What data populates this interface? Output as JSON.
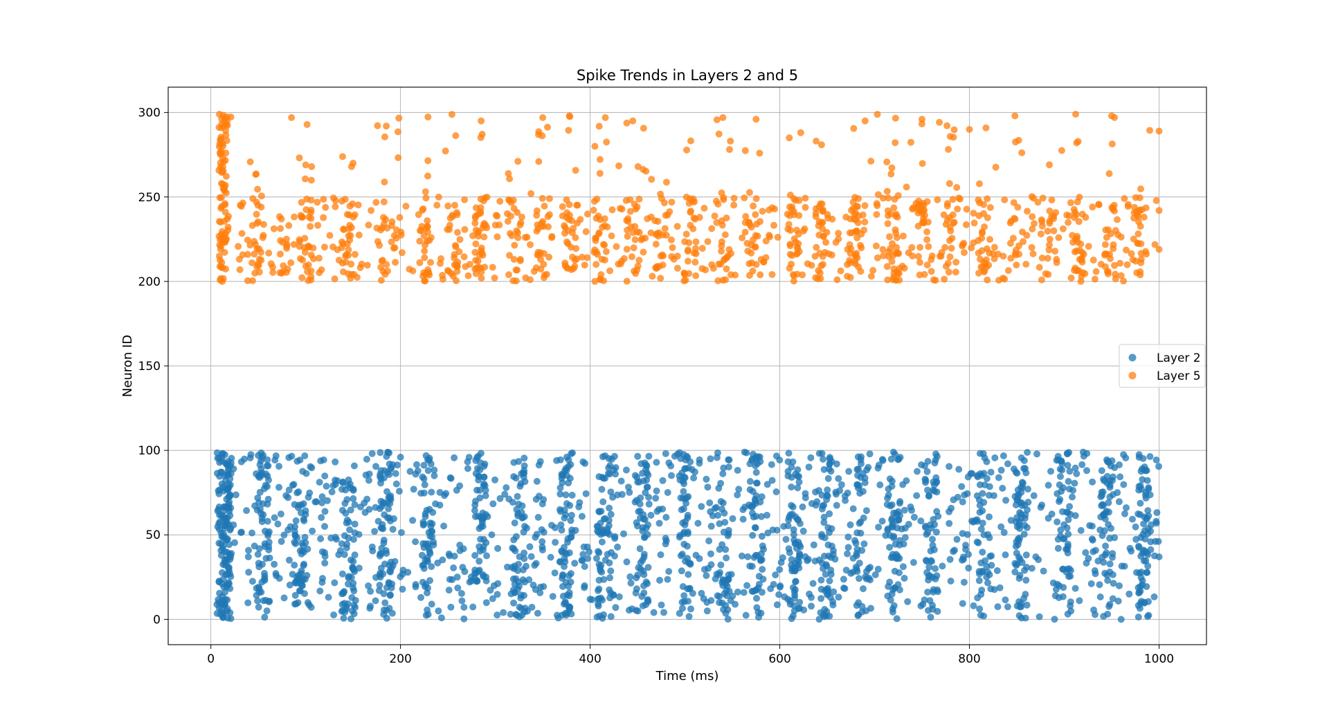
{
  "chart_data": {
    "type": "scatter",
    "title": "Spike Trends in Layers 2 and 5",
    "xlabel": "Time (ms)",
    "ylabel": "Neuron ID",
    "xlim": [
      -45,
      1050
    ],
    "ylim": [
      -15,
      315
    ],
    "xticks": [
      0,
      200,
      400,
      600,
      800,
      1000
    ],
    "yticks": [
      0,
      50,
      100,
      150,
      200,
      250,
      300
    ],
    "xtick_labels": [
      "0",
      "200",
      "400",
      "600",
      "800",
      "1000"
    ],
    "ytick_labels": [
      "0",
      "50",
      "100",
      "150",
      "200",
      "250",
      "300"
    ],
    "grid": true,
    "legend_position": "center-right",
    "marker_alpha": 0.75,
    "series": [
      {
        "name": "Layer 2",
        "color": "#1f77b4",
        "neuron_range": [
          0,
          99
        ],
        "time_range": [
          5,
          1000
        ],
        "approx_spike_count": 2200,
        "dense_burst_times": [
          8,
          10,
          12,
          14,
          16,
          18,
          20
        ],
        "column_times": [
          55,
          95,
          145,
          185,
          230,
          285,
          325,
          375,
          415,
          455,
          500,
          540,
          575,
          615,
          650,
          685,
          720,
          760,
          815,
          855,
          900,
          945,
          985
        ],
        "sample_points": [
          {
            "x": 8,
            "y": 65
          },
          {
            "x": 10,
            "y": 3
          },
          {
            "x": 12,
            "y": 98
          },
          {
            "x": 15,
            "y": 40
          },
          {
            "x": 20,
            "y": 27
          },
          {
            "x": 50,
            "y": 97
          },
          {
            "x": 120,
            "y": 55
          },
          {
            "x": 200,
            "y": 96
          },
          {
            "x": 240,
            "y": 5
          },
          {
            "x": 290,
            "y": 62
          },
          {
            "x": 320,
            "y": 30
          },
          {
            "x": 380,
            "y": 98
          },
          {
            "x": 410,
            "y": 2
          },
          {
            "x": 470,
            "y": 76
          },
          {
            "x": 540,
            "y": 20
          },
          {
            "x": 615,
            "y": 47
          },
          {
            "x": 660,
            "y": 92
          },
          {
            "x": 720,
            "y": 99
          },
          {
            "x": 760,
            "y": 54
          },
          {
            "x": 815,
            "y": 2
          },
          {
            "x": 870,
            "y": 37
          },
          {
            "x": 920,
            "y": 99
          },
          {
            "x": 960,
            "y": 0
          },
          {
            "x": 1000,
            "y": 37
          }
        ]
      },
      {
        "name": "Layer 5",
        "color": "#ff7f0e",
        "neuron_range": [
          200,
          299
        ],
        "time_range": [
          8,
          1000
        ],
        "approx_spike_count": 1300,
        "dense_burst_times": [
          10,
          12,
          14,
          16
        ],
        "column_times": [
          50,
          100,
          145,
          180,
          225,
          255,
          285,
          320,
          350,
          380,
          410,
          445,
          475,
          505,
          540,
          570,
          615,
          645,
          680,
          720,
          750,
          780,
          815,
          850,
          880,
          915,
          950,
          980
        ],
        "sample_points": [
          {
            "x": 9,
            "y": 299
          },
          {
            "x": 14,
            "y": 292
          },
          {
            "x": 12,
            "y": 200
          },
          {
            "x": 85,
            "y": 297
          },
          {
            "x": 100,
            "y": 269
          },
          {
            "x": 150,
            "y": 270
          },
          {
            "x": 185,
            "y": 292
          },
          {
            "x": 285,
            "y": 295
          },
          {
            "x": 350,
            "y": 297
          },
          {
            "x": 378,
            "y": 298
          },
          {
            "x": 405,
            "y": 280
          },
          {
            "x": 445,
            "y": 295
          },
          {
            "x": 540,
            "y": 297
          },
          {
            "x": 575,
            "y": 296
          },
          {
            "x": 610,
            "y": 285
          },
          {
            "x": 690,
            "y": 295
          },
          {
            "x": 750,
            "y": 296
          },
          {
            "x": 800,
            "y": 290
          },
          {
            "x": 848,
            "y": 298
          },
          {
            "x": 912,
            "y": 299
          },
          {
            "x": 950,
            "y": 298
          },
          {
            "x": 1000,
            "y": 289
          },
          {
            "x": 1000,
            "y": 242
          },
          {
            "x": 1000,
            "y": 219
          }
        ]
      }
    ]
  }
}
